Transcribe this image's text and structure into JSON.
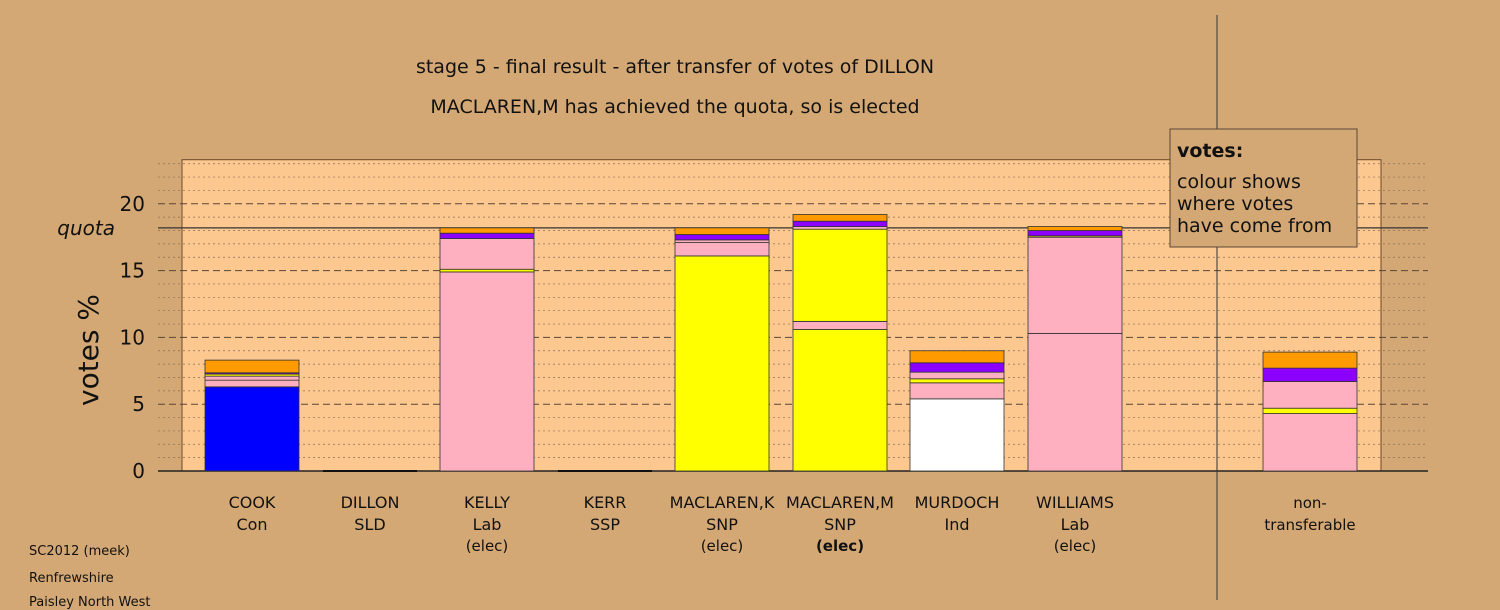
{
  "chart_data": {
    "type": "bar",
    "stacked": true,
    "title": "stage 5 - final result - after transfer of votes of DILLON",
    "subtitle": "MACLAREN,M has achieved the quota, so is elected",
    "ylabel": "votes %",
    "ylim": [
      0,
      23.3
    ],
    "yticks": [
      0,
      5,
      10,
      15,
      20
    ],
    "quota": 18.2,
    "quota_label": "quota",
    "grid": true,
    "legend": {
      "title": "votes:",
      "lines": [
        "colour shows",
        "where votes",
        "have come from"
      ],
      "position": "top-right"
    },
    "colors": {
      "Con": "#0000ff",
      "SNP": "#ffff00",
      "Lab": "#ffb0c0",
      "SLD": "#ff9a00",
      "SSP": "#ff3030",
      "Ind": "#ffffff",
      "Other": "#8b00ff"
    },
    "candidates": [
      {
        "name": "COOK",
        "party": "Con",
        "status": "",
        "bold": false,
        "segments": [
          {
            "color": "Con",
            "value": 6.3
          },
          {
            "color": "Lab",
            "value": 0.5
          },
          {
            "color": "Lab",
            "value": 0.3
          },
          {
            "color": "SNP",
            "value": 0.15
          },
          {
            "color": "Other",
            "value": 0.1
          },
          {
            "color": "SLD",
            "value": 0.95
          }
        ]
      },
      {
        "name": "DILLON",
        "party": "SLD",
        "status": "",
        "bold": false,
        "segments": []
      },
      {
        "name": "KELLY",
        "party": "Lab",
        "status": "(elec)",
        "bold": false,
        "segments": [
          {
            "color": "Lab",
            "value": 14.9
          },
          {
            "color": "SNP",
            "value": 0.2
          },
          {
            "color": "Lab",
            "value": 2.3
          },
          {
            "color": "Other",
            "value": 0.4
          },
          {
            "color": "SLD",
            "value": 0.4
          }
        ]
      },
      {
        "name": "KERR",
        "party": "SSP",
        "status": "",
        "bold": false,
        "segments": []
      },
      {
        "name": "MACLAREN,K",
        "party": "SNP",
        "status": "(elec)",
        "bold": false,
        "segments": [
          {
            "color": "SNP",
            "value": 16.1
          },
          {
            "color": "Lab",
            "value": 1.0
          },
          {
            "color": "Lab",
            "value": 0.2
          },
          {
            "color": "Other",
            "value": 0.4
          },
          {
            "color": "SLD",
            "value": 0.5
          }
        ]
      },
      {
        "name": "MACLAREN,M",
        "party": "SNP",
        "status": "(elec)",
        "bold": true,
        "segments": [
          {
            "color": "SNP",
            "value": 10.6
          },
          {
            "color": "Lab",
            "value": 0.6
          },
          {
            "color": "SNP",
            "value": 6.9
          },
          {
            "color": "Lab",
            "value": 0.2
          },
          {
            "color": "Other",
            "value": 0.4
          },
          {
            "color": "SLD",
            "value": 0.5
          }
        ]
      },
      {
        "name": "MURDOCH",
        "party": "Ind",
        "status": "",
        "bold": false,
        "segments": [
          {
            "color": "Ind",
            "value": 5.4
          },
          {
            "color": "Lab",
            "value": 1.2
          },
          {
            "color": "SNP",
            "value": 0.3
          },
          {
            "color": "Lab",
            "value": 0.5
          },
          {
            "color": "Other",
            "value": 0.7
          },
          {
            "color": "SLD",
            "value": 0.9
          }
        ]
      },
      {
        "name": "WILLIAMS",
        "party": "Lab",
        "status": "(elec)",
        "bold": false,
        "segments": [
          {
            "color": "Lab",
            "value": 10.3
          },
          {
            "color": "Lab",
            "value": 7.2
          },
          {
            "color": "SNP",
            "value": 0.1
          },
          {
            "color": "Other",
            "value": 0.4
          },
          {
            "color": "SLD",
            "value": 0.3
          }
        ]
      }
    ],
    "non_transferable": {
      "label_lines": [
        "non-",
        "transferable"
      ],
      "segments": [
        {
          "color": "Lab",
          "value": 4.3
        },
        {
          "color": "SNP",
          "value": 0.4
        },
        {
          "color": "Lab",
          "value": 2.0
        },
        {
          "color": "Other",
          "value": 1.0
        },
        {
          "color": "SLD",
          "value": 1.2
        }
      ]
    }
  },
  "footnotes": [
    "SC2012 (meek)",
    "Renfrewshire",
    "Paisley North West"
  ]
}
